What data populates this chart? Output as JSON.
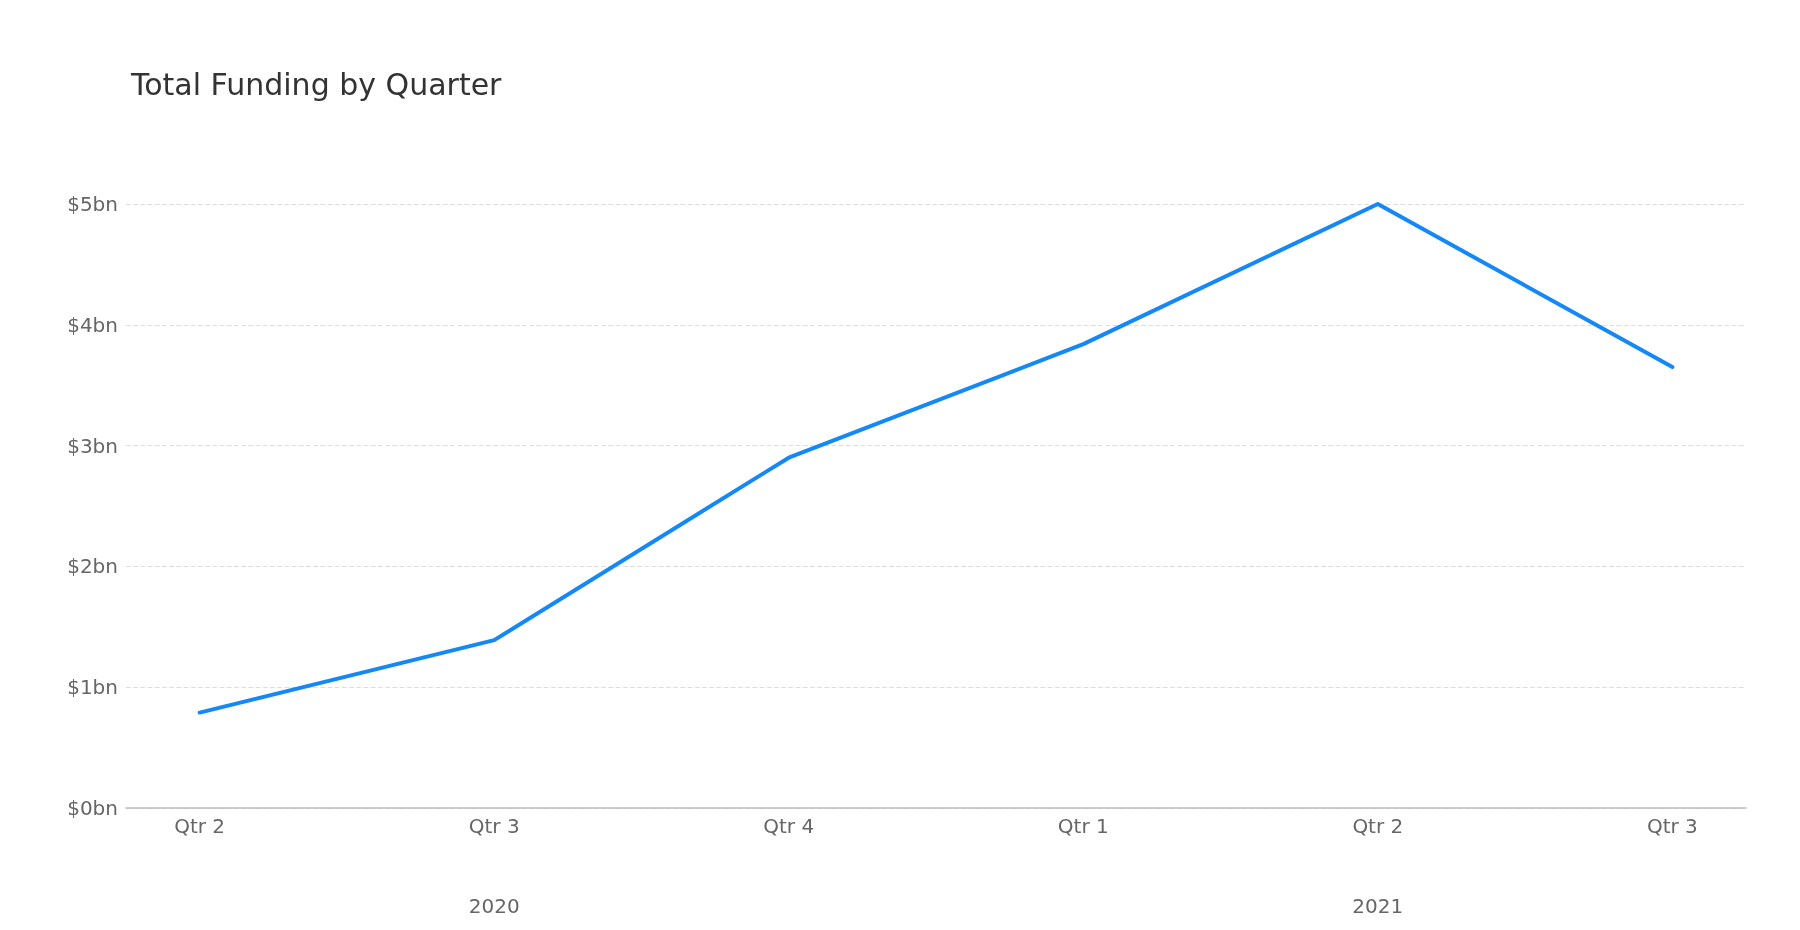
{
  "chart_data": {
    "type": "line",
    "title": "Total Funding by Quarter",
    "categories": [
      "Qtr 2",
      "Qtr 3",
      "Qtr 4",
      "Qtr 1",
      "Qtr 2",
      "Qtr 3"
    ],
    "series": [
      {
        "color": "#1488f7",
        "values": [
          0.79,
          1.39,
          2.9,
          3.84,
          5.0,
          3.65
        ]
      }
    ],
    "ylim": [
      0,
      5
    ],
    "yticks": [
      {
        "value": 0,
        "label": "$0bn"
      },
      {
        "value": 1,
        "label": "$1bn"
      },
      {
        "value": 2,
        "label": "$2bn"
      },
      {
        "value": 3,
        "label": "$3bn"
      },
      {
        "value": 4,
        "label": "$4bn"
      },
      {
        "value": 5,
        "label": "$5bn"
      }
    ],
    "grid": "y",
    "marker": "none",
    "line_style": "solid",
    "annotations": [
      "2020",
      "2021"
    ]
  }
}
